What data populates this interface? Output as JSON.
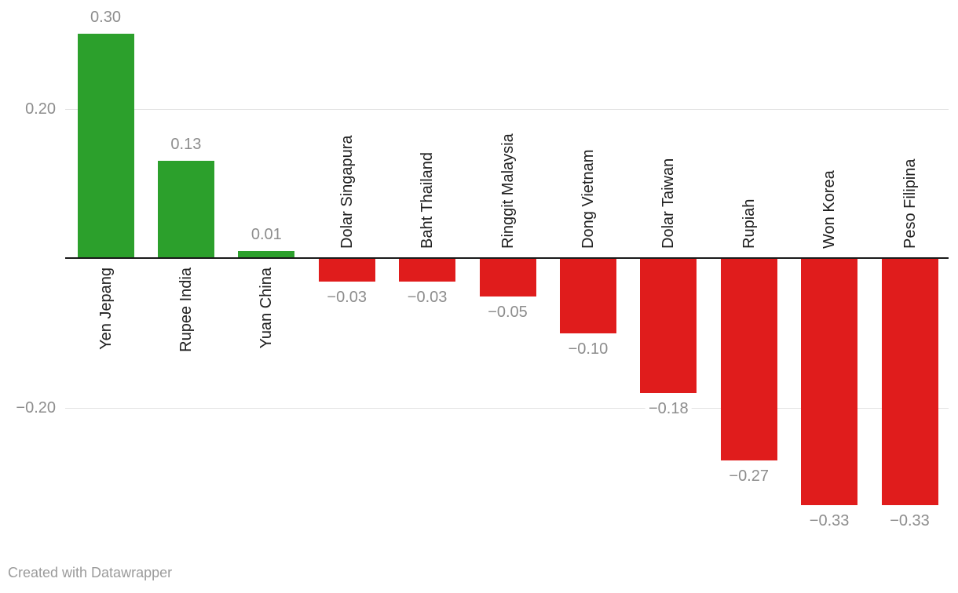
{
  "chart_data": {
    "type": "bar",
    "categories": [
      "Yen Jepang",
      "Rupee India",
      "Yuan China",
      "Dolar Singapura",
      "Baht Thailand",
      "Ringgit Malaysia",
      "Dong Vietnam",
      "Dolar Taiwan",
      "Rupiah",
      "Won Korea",
      "Peso Filipina"
    ],
    "values": [
      0.3,
      0.13,
      0.01,
      -0.03,
      -0.03,
      -0.05,
      -0.1,
      -0.18,
      -0.27,
      -0.33,
      -0.33
    ],
    "value_labels": [
      "0.30",
      "0.13",
      "0.01",
      "−0.03",
      "−0.03",
      "−0.05",
      "−0.10",
      "−0.18",
      "−0.27",
      "−0.33",
      "−0.33"
    ],
    "title": "",
    "xlabel": "",
    "ylabel": "",
    "ylim": [
      -0.4,
      0.34
    ],
    "yticks": [
      {
        "value": 0.2,
        "label": "0.20"
      },
      {
        "value": -0.2,
        "label": "−0.20"
      }
    ],
    "grid": true,
    "legend_position": "none",
    "colors": {
      "positive": "#2ca02c",
      "negative": "#e01c1c",
      "gridline": "#e2e2e2",
      "axis_line": "#191919",
      "value_label": "#8d8d8d",
      "tick_label": "#8d8d8d",
      "category_label": "#1f1f1f"
    }
  },
  "footer": {
    "credit": "Created with Datawrapper",
    "color": "#9b9b9b"
  }
}
